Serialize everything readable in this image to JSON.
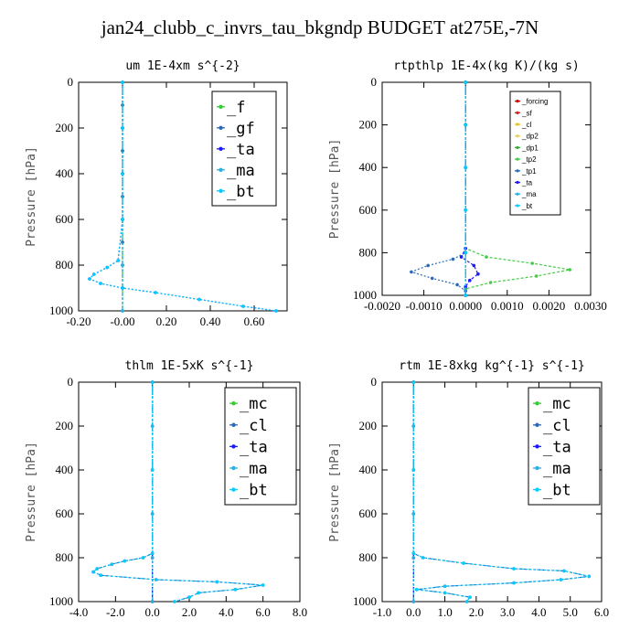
{
  "title": "jan24_clubb_c_invrs_tau_bkgndp  BUDGET at275E,-7N",
  "chart_data": [
    {
      "type": "line",
      "title": "um   1E-4xm s^{-2}",
      "ylabel": "Pressure [hPa]",
      "ylim": [
        1000,
        0
      ],
      "xlim": [
        -0.2,
        0.75
      ],
      "xticks": [
        "-0.20",
        "-0.00",
        "0.20",
        "0.40",
        "0.60"
      ],
      "xtick_values": [
        -0.2,
        0,
        0.2,
        0.4,
        0.6
      ],
      "yticks": [
        "0",
        "200",
        "400",
        "600",
        "800",
        "1000"
      ],
      "ytick_values": [
        0,
        200,
        400,
        600,
        800,
        1000
      ],
      "legend_style": "big",
      "series": [
        {
          "name": "_f",
          "color": "#33cc33",
          "x": [
            0,
            0,
            0,
            0,
            0,
            0,
            0,
            0,
            0,
            0,
            0
          ],
          "y": [
            0,
            100,
            200,
            300,
            400,
            500,
            600,
            700,
            800,
            900,
            1000
          ]
        },
        {
          "name": "_gf",
          "color": "#2a6ab8",
          "x": [
            0,
            0,
            0,
            0,
            0,
            0,
            0,
            0,
            0,
            0,
            0
          ],
          "y": [
            0,
            100,
            200,
            300,
            400,
            500,
            600,
            700,
            800,
            900,
            1000
          ]
        },
        {
          "name": "_ta",
          "color": "#1a1aff",
          "x": [
            0,
            0,
            0,
            0,
            -0.02,
            -0.07,
            -0.13,
            -0.15,
            -0.1,
            0.0,
            0.15,
            0.35,
            0.55,
            0.7
          ],
          "y": [
            0,
            200,
            400,
            600,
            780,
            810,
            840,
            860,
            880,
            900,
            920,
            950,
            980,
            1000
          ]
        },
        {
          "name": "_ma",
          "color": "#2ab0e0",
          "x": [
            0,
            0,
            0,
            0,
            0,
            0
          ],
          "y": [
            0,
            200,
            400,
            600,
            800,
            1000
          ]
        },
        {
          "name": "_bt",
          "color": "#00ccff",
          "x": [
            0,
            0,
            0,
            0,
            -0.02,
            -0.07,
            -0.13,
            -0.15,
            -0.1,
            0.0,
            0.15,
            0.35,
            0.55,
            0.7
          ],
          "y": [
            0,
            200,
            400,
            600,
            780,
            810,
            840,
            860,
            880,
            900,
            920,
            950,
            980,
            1000
          ]
        }
      ]
    },
    {
      "type": "line",
      "title": "rtpthlp   1E-4x(kg K)/(kg s)",
      "ylabel": "Pressure [hPa]",
      "ylim": [
        1000,
        0
      ],
      "xlim": [
        -0.002,
        0.003
      ],
      "xticks": [
        "-0.0020",
        "-0.0010",
        "0.0000",
        "0.0010",
        "0.0020",
        "0.0030"
      ],
      "xtick_values": [
        -0.002,
        -0.001,
        0,
        0.001,
        0.002,
        0.003
      ],
      "yticks": [
        "0",
        "200",
        "400",
        "600",
        "800",
        "1000"
      ],
      "ytick_values": [
        0,
        200,
        400,
        600,
        800,
        1000
      ],
      "legend_style": "small",
      "series": [
        {
          "name": "_forcing",
          "color": "#cc0000",
          "x": [
            0,
            0,
            0,
            0,
            0,
            0
          ],
          "y": [
            0,
            200,
            400,
            600,
            800,
            1000
          ]
        },
        {
          "name": "_sf",
          "color": "#cc2222",
          "x": [
            0,
            0,
            0,
            0,
            0,
            0
          ],
          "y": [
            0,
            200,
            400,
            600,
            800,
            1000
          ]
        },
        {
          "name": "_cl",
          "color": "#e8c020",
          "x": [
            0,
            0,
            0,
            0,
            0,
            0
          ],
          "y": [
            0,
            200,
            400,
            600,
            800,
            1000
          ]
        },
        {
          "name": "_dp2",
          "color": "#e8d060",
          "x": [
            0,
            0,
            0,
            0,
            0,
            0
          ],
          "y": [
            0,
            200,
            400,
            600,
            800,
            1000
          ]
        },
        {
          "name": "_dp1",
          "color": "#33aa33",
          "x": [
            0,
            0,
            0,
            0,
            0,
            0
          ],
          "y": [
            0,
            200,
            400,
            600,
            800,
            1000
          ]
        },
        {
          "name": "_tp2",
          "color": "#44cc44",
          "x": [
            0,
            0,
            0.0005,
            0.0016,
            0.0025,
            0.0017,
            0.0006,
            0,
            0
          ],
          "y": [
            0,
            780,
            820,
            850,
            880,
            910,
            940,
            970,
            1000
          ]
        },
        {
          "name": "_tp1",
          "color": "#2a6ab8",
          "x": [
            0,
            0,
            -0.0003,
            -0.0009,
            -0.0013,
            -0.0008,
            -0.0002,
            0,
            0
          ],
          "y": [
            0,
            800,
            830,
            860,
            890,
            920,
            950,
            980,
            1000
          ]
        },
        {
          "name": "_ta",
          "color": "#1a1aff",
          "x": [
            0,
            0,
            -0.0001,
            0.0002,
            0.0003,
            0.0001,
            0,
            0
          ],
          "y": [
            0,
            780,
            820,
            860,
            900,
            930,
            960,
            1000
          ]
        },
        {
          "name": "_ma",
          "color": "#2ab0e0",
          "x": [
            0,
            0,
            0,
            0,
            0,
            0
          ],
          "y": [
            0,
            200,
            400,
            600,
            800,
            1000
          ]
        },
        {
          "name": "_bt",
          "color": "#00ccff",
          "x": [
            0,
            0,
            0,
            0,
            0,
            0
          ],
          "y": [
            0,
            200,
            400,
            600,
            800,
            1000
          ]
        }
      ]
    },
    {
      "type": "line",
      "title": "thlm   1E-5xK s^{-1}",
      "ylabel": "Pressure [hPa]",
      "ylim": [
        1000,
        0
      ],
      "xlim": [
        -4.0,
        8.0
      ],
      "xticks": [
        "-4.0",
        "-2.0",
        "0.0",
        "2.0",
        "4.0",
        "6.0",
        "8.0"
      ],
      "xtick_values": [
        -4,
        -2,
        0,
        2,
        4,
        6,
        8
      ],
      "yticks": [
        "0",
        "200",
        "400",
        "600",
        "800",
        "1000"
      ],
      "ytick_values": [
        0,
        200,
        400,
        600,
        800,
        1000
      ],
      "legend_style": "big",
      "series": [
        {
          "name": "_mc",
          "color": "#33cc33",
          "x": [
            0,
            0,
            0,
            0,
            0,
            0
          ],
          "y": [
            0,
            200,
            400,
            600,
            800,
            1000
          ]
        },
        {
          "name": "_cl",
          "color": "#2a6ab8",
          "x": [
            0,
            0,
            0,
            -0.5,
            -1.5,
            -2.2,
            -3.0,
            -3.2,
            -2.8,
            0.2,
            3.5,
            6.0,
            4.5,
            2.5,
            2.0,
            1.2
          ],
          "y": [
            0,
            400,
            780,
            800,
            815,
            830,
            850,
            865,
            880,
            900,
            910,
            925,
            945,
            960,
            980,
            1000
          ]
        },
        {
          "name": "_ta",
          "color": "#1a1aff",
          "x": [
            0,
            0,
            0,
            0,
            0,
            0
          ],
          "y": [
            0,
            200,
            400,
            600,
            800,
            1000
          ]
        },
        {
          "name": "_ma",
          "color": "#2ab0e0",
          "x": [
            0,
            0,
            0,
            0,
            0,
            0
          ],
          "y": [
            0,
            200,
            400,
            600,
            800,
            1000
          ]
        },
        {
          "name": "_bt",
          "color": "#00ccff",
          "x": [
            0,
            0,
            0,
            -0.5,
            -1.5,
            -2.2,
            -3.0,
            -3.2,
            -2.8,
            0.2,
            3.5,
            6.0,
            4.5,
            2.5,
            2.0,
            1.2
          ],
          "y": [
            0,
            400,
            780,
            800,
            815,
            830,
            850,
            865,
            880,
            900,
            910,
            925,
            945,
            960,
            980,
            1000
          ]
        }
      ]
    },
    {
      "type": "line",
      "title": "rtm   1E-8xkg kg^{-1} s^{-1}",
      "ylabel": "Pressure [hPa]",
      "ylim": [
        1000,
        0
      ],
      "xlim": [
        -1.0,
        6.0
      ],
      "xticks": [
        "-1.0",
        "0.0",
        "1.0",
        "2.0",
        "3.0",
        "4.0",
        "5.0",
        "6.0"
      ],
      "xtick_values": [
        -1,
        0,
        1,
        2,
        3,
        4,
        5,
        6
      ],
      "yticks": [
        "0",
        "200",
        "400",
        "600",
        "800",
        "1000"
      ],
      "ytick_values": [
        0,
        200,
        400,
        600,
        800,
        1000
      ],
      "legend_style": "big",
      "series": [
        {
          "name": "_mc",
          "color": "#33cc33",
          "x": [
            0,
            0,
            0,
            0,
            0,
            0
          ],
          "y": [
            0,
            200,
            400,
            600,
            800,
            1000
          ]
        },
        {
          "name": "_cl",
          "color": "#2a6ab8",
          "x": [
            0,
            0,
            0,
            0.3,
            1.6,
            3.2,
            4.8,
            5.6,
            4.7,
            3.2,
            1.0,
            0.1,
            1.0,
            1.8,
            1.7
          ],
          "y": [
            0,
            400,
            780,
            800,
            825,
            850,
            860,
            885,
            900,
            915,
            930,
            945,
            960,
            980,
            1000
          ]
        },
        {
          "name": "_ta",
          "color": "#1a1aff",
          "x": [
            0,
            0,
            0,
            0,
            0,
            0
          ],
          "y": [
            0,
            200,
            400,
            600,
            800,
            1000
          ]
        },
        {
          "name": "_ma",
          "color": "#2ab0e0",
          "x": [
            0,
            0,
            0,
            0,
            0,
            0
          ],
          "y": [
            0,
            200,
            400,
            600,
            800,
            1000
          ]
        },
        {
          "name": "_bt",
          "color": "#00ccff",
          "x": [
            0,
            0,
            0,
            0.3,
            1.6,
            3.2,
            4.8,
            5.6,
            4.7,
            3.2,
            1.0,
            0.1,
            1.0,
            1.8,
            1.7
          ],
          "y": [
            0,
            400,
            780,
            800,
            825,
            850,
            860,
            885,
            900,
            915,
            930,
            945,
            960,
            980,
            1000
          ]
        }
      ]
    }
  ]
}
